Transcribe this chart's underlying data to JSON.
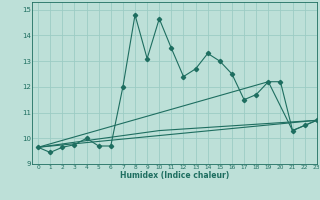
{
  "xlabel": "Humidex (Indice chaleur)",
  "xlim": [
    -0.5,
    23
  ],
  "ylim": [
    9,
    15.3
  ],
  "yticks": [
    9,
    10,
    11,
    12,
    13,
    14,
    15
  ],
  "xticks": [
    0,
    1,
    2,
    3,
    4,
    5,
    6,
    7,
    8,
    9,
    10,
    11,
    12,
    13,
    14,
    15,
    16,
    17,
    18,
    19,
    20,
    21,
    22,
    23
  ],
  "bg_color": "#bde0d8",
  "grid_color": "#9cccc4",
  "line_color": "#1e6e60",
  "series1_x": [
    0,
    1,
    2,
    3,
    4,
    5,
    6,
    7,
    8,
    9,
    10,
    11,
    12,
    13,
    14,
    15,
    16,
    17,
    18,
    19,
    20,
    21,
    22,
    23
  ],
  "series1_y": [
    9.65,
    9.45,
    9.65,
    9.75,
    10.0,
    9.7,
    9.7,
    12.0,
    14.8,
    13.1,
    14.65,
    13.5,
    12.4,
    12.7,
    13.3,
    13.0,
    12.5,
    11.5,
    11.7,
    12.2,
    12.2,
    10.3,
    10.5,
    10.7
  ],
  "series2_x": [
    0,
    23
  ],
  "series2_y": [
    9.65,
    10.7
  ],
  "series3_x": [
    0,
    10,
    23
  ],
  "series3_y": [
    9.65,
    10.3,
    10.7
  ],
  "series4_x": [
    0,
    19,
    21,
    23
  ],
  "series4_y": [
    9.65,
    12.2,
    10.3,
    10.7
  ]
}
